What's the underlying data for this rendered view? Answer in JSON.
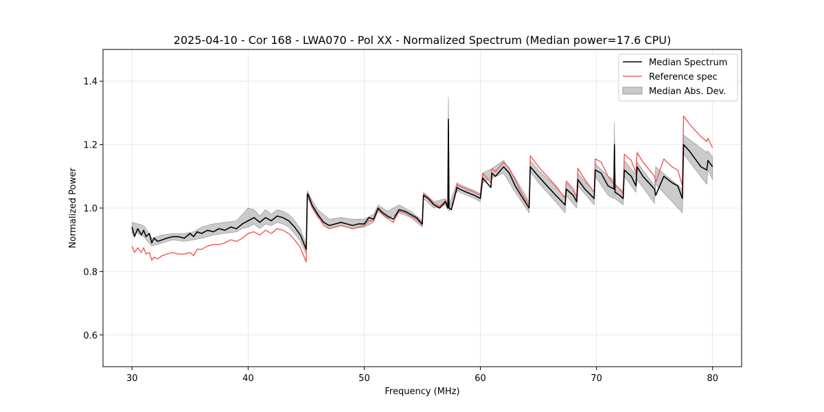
{
  "chart_data": {
    "type": "line",
    "title": "2025-04-10 - Cor 168 - LWA070 - Pol XX - Normalized Spectrum (Median power=17.6 CPU)",
    "xlabel": "Frequency (MHz)",
    "ylabel": "Normalized Power",
    "xlim": [
      27.5,
      82.5
    ],
    "ylim": [
      0.5,
      1.5
    ],
    "xticks": [
      30,
      40,
      50,
      60,
      70,
      80
    ],
    "yticks": [
      0.6,
      0.8,
      1.0,
      1.2,
      1.4
    ],
    "xtick_labels": [
      "30",
      "40",
      "50",
      "60",
      "70",
      "80"
    ],
    "ytick_labels": [
      "0.6",
      "0.8",
      "1.0",
      "1.2",
      "1.4"
    ],
    "grid": true,
    "legend_position": "top-right",
    "legend": [
      {
        "name": "Median Spectrum",
        "kind": "line",
        "color": "#000000"
      },
      {
        "name": "Reference spec",
        "kind": "line",
        "color": "#f06060"
      },
      {
        "name": "Median Abs. Dev.",
        "kind": "band",
        "color": "#a0a0a0"
      }
    ],
    "series": [
      {
        "name": "Median Spectrum",
        "color": "#000000",
        "x": [
          30.0,
          30.2,
          30.5,
          30.8,
          31.0,
          31.2,
          31.5,
          31.7,
          31.9,
          32.2,
          32.6,
          33.0,
          33.5,
          34.0,
          34.5,
          35.0,
          35.3,
          35.6,
          36.0,
          36.5,
          37.0,
          37.5,
          38.0,
          38.5,
          39.0,
          39.5,
          40.0,
          40.5,
          41.0,
          41.5,
          42.0,
          42.5,
          43.0,
          43.5,
          44.0,
          44.5,
          45.0,
          45.1,
          45.2,
          45.5,
          46.0,
          46.5,
          47.0,
          47.5,
          48.0,
          48.5,
          49.0,
          49.5,
          50.0,
          50.4,
          50.8,
          51.2,
          51.6,
          52.0,
          52.5,
          53.0,
          53.5,
          54.0,
          54.5,
          55.0,
          55.1,
          55.5,
          56.0,
          56.5,
          57.0,
          57.2,
          57.25,
          57.3,
          57.5,
          58.0,
          58.2,
          58.8,
          59.5,
          60.0,
          60.2,
          60.9,
          61.0,
          61.3,
          62.0,
          62.5,
          63.0,
          63.5,
          64.2,
          64.3,
          65.0,
          66.0,
          66.5,
          67.3,
          67.4,
          68.0,
          68.3,
          68.4,
          69.0,
          69.8,
          69.9,
          70.4,
          71.0,
          71.5,
          71.55,
          71.6,
          72.0,
          72.3,
          72.4,
          73.0,
          73.4,
          73.5,
          74.0,
          75.0,
          75.1,
          75.8,
          76.5,
          77.0,
          77.4,
          77.5,
          78.0,
          79.0,
          79.5,
          79.6,
          80.0
        ],
        "values": [
          0.94,
          0.91,
          0.935,
          0.915,
          0.93,
          0.91,
          0.92,
          0.89,
          0.905,
          0.895,
          0.9,
          0.905,
          0.91,
          0.91,
          0.905,
          0.92,
          0.91,
          0.925,
          0.92,
          0.93,
          0.925,
          0.935,
          0.93,
          0.94,
          0.935,
          0.95,
          0.96,
          0.97,
          0.955,
          0.97,
          0.96,
          0.975,
          0.97,
          0.96,
          0.94,
          0.915,
          0.87,
          1.045,
          1.04,
          1.01,
          0.98,
          0.955,
          0.945,
          0.95,
          0.955,
          0.95,
          0.945,
          0.95,
          0.95,
          0.97,
          0.965,
          1.0,
          0.985,
          0.975,
          0.965,
          0.995,
          0.99,
          0.98,
          0.97,
          0.95,
          1.04,
          1.03,
          1.01,
          1.0,
          1.02,
          1.0,
          1.28,
          1.0,
          0.995,
          1.065,
          1.06,
          1.05,
          1.04,
          1.03,
          1.095,
          1.065,
          1.11,
          1.1,
          1.13,
          1.11,
          1.07,
          1.04,
          1.0,
          1.13,
          1.1,
          1.06,
          1.04,
          1.01,
          1.06,
          1.04,
          1.02,
          1.09,
          1.06,
          1.03,
          1.12,
          1.11,
          1.07,
          1.06,
          1.2,
          1.05,
          1.04,
          1.03,
          1.12,
          1.1,
          1.07,
          1.13,
          1.1,
          1.06,
          1.04,
          1.1,
          1.08,
          1.07,
          1.03,
          1.2,
          1.18,
          1.13,
          1.12,
          1.15,
          1.13
        ]
      },
      {
        "name": "Reference spec",
        "color": "#f06060",
        "x": [
          30.0,
          30.2,
          30.5,
          30.8,
          31.0,
          31.2,
          31.5,
          31.7,
          31.9,
          32.2,
          32.6,
          33.0,
          33.5,
          34.0,
          34.5,
          35.0,
          35.3,
          35.6,
          36.0,
          36.5,
          37.0,
          37.5,
          38.0,
          38.5,
          39.0,
          39.5,
          40.0,
          40.5,
          41.0,
          41.5,
          42.0,
          42.5,
          43.0,
          43.5,
          44.0,
          44.5,
          45.0,
          45.1,
          45.2,
          45.5,
          46.0,
          46.5,
          47.0,
          47.5,
          48.0,
          48.5,
          49.0,
          49.5,
          50.0,
          50.4,
          50.8,
          51.2,
          51.6,
          52.0,
          52.5,
          53.0,
          53.5,
          54.0,
          54.5,
          55.0,
          55.1,
          55.5,
          56.0,
          56.5,
          57.0,
          57.2,
          57.25,
          57.3,
          57.5,
          58.0,
          58.2,
          58.8,
          59.5,
          60.0,
          60.2,
          60.9,
          61.0,
          61.3,
          62.0,
          62.5,
          63.0,
          63.5,
          64.2,
          64.3,
          65.0,
          66.0,
          66.5,
          67.3,
          67.4,
          68.0,
          68.3,
          68.4,
          69.0,
          69.8,
          69.9,
          70.4,
          71.0,
          71.5,
          71.55,
          71.6,
          72.0,
          72.3,
          72.4,
          73.0,
          73.4,
          73.5,
          74.0,
          75.0,
          75.1,
          75.8,
          76.5,
          77.0,
          77.4,
          77.5,
          78.0,
          79.0,
          79.5,
          79.6,
          80.0
        ],
        "values": [
          0.88,
          0.86,
          0.875,
          0.86,
          0.875,
          0.855,
          0.86,
          0.835,
          0.845,
          0.84,
          0.85,
          0.855,
          0.86,
          0.855,
          0.855,
          0.86,
          0.85,
          0.87,
          0.87,
          0.88,
          0.885,
          0.885,
          0.89,
          0.9,
          0.895,
          0.905,
          0.92,
          0.925,
          0.915,
          0.93,
          0.92,
          0.935,
          0.93,
          0.92,
          0.9,
          0.875,
          0.83,
          1.04,
          1.035,
          1.005,
          0.975,
          0.945,
          0.935,
          0.94,
          0.945,
          0.94,
          0.935,
          0.94,
          0.945,
          0.96,
          0.96,
          0.995,
          0.98,
          0.97,
          0.955,
          0.99,
          0.985,
          0.975,
          0.965,
          0.945,
          1.045,
          1.035,
          1.015,
          1.005,
          1.025,
          1.0,
          1.24,
          1.0,
          0.995,
          1.075,
          1.07,
          1.06,
          1.05,
          1.04,
          1.11,
          1.08,
          1.125,
          1.115,
          1.145,
          1.125,
          1.09,
          1.05,
          1.01,
          1.165,
          1.13,
          1.09,
          1.07,
          1.03,
          1.085,
          1.06,
          1.035,
          1.125,
          1.09,
          1.05,
          1.155,
          1.145,
          1.1,
          1.075,
          1.19,
          1.075,
          1.06,
          1.045,
          1.17,
          1.15,
          1.11,
          1.175,
          1.145,
          1.1,
          1.08,
          1.155,
          1.13,
          1.12,
          1.07,
          1.29,
          1.265,
          1.225,
          1.21,
          1.22,
          1.19
        ]
      }
    ],
    "band": {
      "name": "Median Abs. Dev.",
      "color": "#a0a0a0",
      "x": [
        30.0,
        30.5,
        31.0,
        31.7,
        32.6,
        33.5,
        34.5,
        35.3,
        36.0,
        37.0,
        38.0,
        39.0,
        39.5,
        40.0,
        40.5,
        41.0,
        41.5,
        42.0,
        42.5,
        43.0,
        43.5,
        44.0,
        44.5,
        45.0,
        45.1,
        45.5,
        46.0,
        47.0,
        48.0,
        49.0,
        50.0,
        50.8,
        51.2,
        52.0,
        53.0,
        54.0,
        55.0,
        55.1,
        56.0,
        57.0,
        57.2,
        57.25,
        57.3,
        58.0,
        58.2,
        59.5,
        60.0,
        60.2,
        61.0,
        62.0,
        63.0,
        64.2,
        64.3,
        65.0,
        66.0,
        67.3,
        67.4,
        68.3,
        68.4,
        69.8,
        69.9,
        71.0,
        71.5,
        71.55,
        71.6,
        72.3,
        72.4,
        73.4,
        73.5,
        75.0,
        75.1,
        77.4,
        77.5,
        79.5,
        79.6,
        80.0
      ],
      "lower": [
        0.92,
        0.92,
        0.91,
        0.88,
        0.89,
        0.9,
        0.895,
        0.9,
        0.905,
        0.915,
        0.92,
        0.925,
        0.935,
        0.94,
        0.95,
        0.935,
        0.95,
        0.945,
        0.955,
        0.95,
        0.94,
        0.92,
        0.895,
        0.855,
        1.035,
        1.0,
        0.97,
        0.935,
        0.945,
        0.935,
        0.94,
        0.955,
        0.99,
        0.965,
        0.985,
        0.97,
        0.94,
        1.03,
        1.0,
        1.01,
        0.995,
        1.24,
        0.99,
        1.055,
        1.05,
        1.03,
        1.02,
        1.08,
        1.095,
        1.11,
        1.05,
        0.985,
        1.115,
        1.08,
        1.04,
        0.985,
        1.04,
        1.0,
        1.07,
        1.01,
        1.1,
        1.04,
        1.03,
        1.18,
        1.03,
        1.01,
        1.1,
        1.05,
        1.09,
        1.015,
        1.075,
        0.985,
        1.17,
        1.075,
        1.12,
        1.09
      ],
      "upper": [
        0.955,
        0.95,
        0.945,
        0.905,
        0.915,
        0.92,
        0.92,
        0.925,
        0.94,
        0.95,
        0.955,
        0.96,
        0.98,
        1.0,
        0.995,
        0.975,
        0.995,
        0.98,
        0.995,
        0.99,
        0.98,
        0.96,
        0.935,
        0.885,
        1.055,
        1.025,
        0.995,
        0.965,
        0.97,
        0.965,
        0.965,
        0.98,
        1.01,
        0.99,
        1.01,
        0.99,
        0.96,
        1.05,
        1.02,
        1.03,
        1.01,
        1.35,
        1.01,
        1.08,
        1.075,
        1.055,
        1.045,
        1.11,
        1.125,
        1.15,
        1.095,
        1.02,
        1.15,
        1.12,
        1.085,
        1.035,
        1.08,
        1.04,
        1.11,
        1.05,
        1.14,
        1.1,
        1.09,
        1.27,
        1.07,
        1.055,
        1.15,
        1.105,
        1.145,
        1.07,
        1.13,
        1.06,
        1.23,
        1.175,
        1.18,
        1.16
      ]
    }
  }
}
